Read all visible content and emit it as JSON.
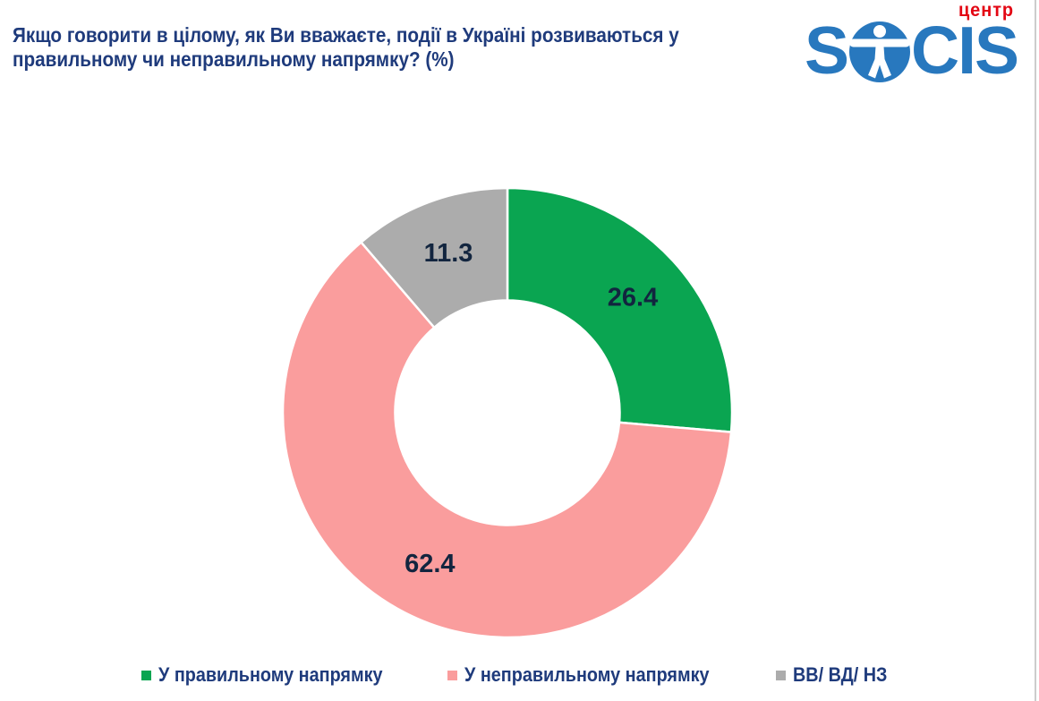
{
  "header": {
    "title_lines": [
      "Якщо говорити в цілому, як Ви вважаєте, події в Україні розвиваються у",
      "правильному чи неправильному напрямку? (%)"
    ],
    "title_color": "#1f3b7c",
    "logo": {
      "top_text": "центр",
      "brand": "SOCIS",
      "brand_left": "S",
      "brand_right": "CIS",
      "blue": "#2878be",
      "red": "#e30613"
    }
  },
  "chart_data": {
    "type": "pie",
    "subtype": "donut",
    "title": "Якщо говорити в цілому, як Ви вважаєте, події в Україні розвиваються у правильному чи неправильному напрямку? (%)",
    "unit": "%",
    "categories": [
      "У правильному напрямку",
      "У неправильному напрямку",
      "ВВ/ ВД/ НЗ"
    ],
    "values": [
      26.4,
      62.4,
      11.3
    ],
    "colors": [
      "#0aa551",
      "#fa9d9d",
      "#acacac"
    ],
    "data_labels": [
      "26.4",
      "62.4",
      "11.3"
    ],
    "data_label_color": "#12253f",
    "start_angle_deg": 0,
    "direction": "clockwise",
    "hole_ratio": 0.5,
    "separator_color": "#ffffff",
    "legend_position": "bottom"
  }
}
